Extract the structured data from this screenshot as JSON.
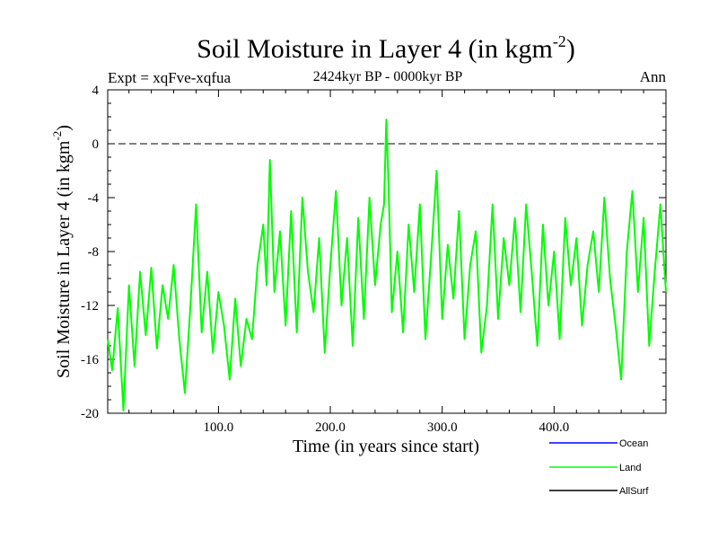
{
  "chart_data": {
    "type": "line",
    "title": "Soil Moisture in Layer 4 (in kgm",
    "title_sup": "-2",
    "title_close": ")",
    "subtitle": "2424kyr BP - 0000kyr BP",
    "expt_label": "Expt = xqFve-xqfua",
    "season_label": "Ann",
    "xlabel": "Time (in years since start)",
    "ylabel": "Soil Moisture in Layer 4 (in kgm",
    "ylabel_sup": "-2",
    "ylabel_close": ")",
    "xlim": [
      1,
      500
    ],
    "ylim": [
      -20,
      4
    ],
    "xticks": [
      100,
      200,
      300,
      400
    ],
    "xtick_labels": [
      "100.0",
      "200.0",
      "300.0",
      "400.0"
    ],
    "yticks": [
      4,
      0,
      -4,
      -8,
      -12,
      -16,
      -20
    ],
    "ytick_labels": [
      "4",
      "0",
      "-4",
      "-8",
      "-12",
      "-16",
      "-20"
    ],
    "reference_line": {
      "y": 0,
      "style": "dashed"
    },
    "legend": [
      {
        "name": "Ocean",
        "color": "#0000ff"
      },
      {
        "name": "Land",
        "color": "#00ff00"
      },
      {
        "name": "AllSurf",
        "color": "#000000"
      }
    ],
    "series": [
      {
        "name": "Land",
        "color": "#00ff00",
        "x": [
          1,
          5,
          10,
          15,
          20,
          25,
          30,
          35,
          40,
          45,
          50,
          55,
          60,
          65,
          70,
          75,
          80,
          85,
          90,
          95,
          100,
          105,
          110,
          115,
          120,
          125,
          130,
          135,
          140,
          143,
          146,
          150,
          155,
          160,
          165,
          170,
          175,
          180,
          185,
          190,
          195,
          200,
          205,
          210,
          215,
          220,
          225,
          230,
          235,
          240,
          245,
          248,
          250,
          252,
          255,
          260,
          265,
          270,
          275,
          280,
          285,
          290,
          295,
          300,
          305,
          310,
          315,
          320,
          325,
          330,
          335,
          340,
          345,
          350,
          355,
          360,
          365,
          370,
          375,
          380,
          385,
          390,
          395,
          400,
          405,
          410,
          415,
          420,
          425,
          430,
          435,
          440,
          445,
          450,
          455,
          460,
          465,
          470,
          475,
          480,
          485,
          490,
          495,
          500
        ],
        "y": [
          -14.5,
          -16.8,
          -12.2,
          -19.8,
          -10.5,
          -16.5,
          -9.5,
          -14.2,
          -9.2,
          -15.2,
          -10.5,
          -13.0,
          -9.0,
          -14.5,
          -18.5,
          -12.0,
          -4.5,
          -14.0,
          -9.5,
          -15.5,
          -11.0,
          -13.5,
          -17.5,
          -11.5,
          -16.5,
          -13.0,
          -14.5,
          -9.0,
          -6.0,
          -10.5,
          -1.2,
          -11.0,
          -6.5,
          -13.5,
          -5.0,
          -14.0,
          -4.0,
          -9.5,
          -12.5,
          -7.0,
          -15.5,
          -9.0,
          -3.5,
          -12.0,
          -7.0,
          -15.0,
          -5.5,
          -13.0,
          -4.0,
          -10.5,
          -6.0,
          -4.5,
          1.8,
          -3.0,
          -12.5,
          -8.0,
          -14.0,
          -6.0,
          -11.0,
          -4.5,
          -14.5,
          -8.5,
          -2.0,
          -13.0,
          -7.5,
          -11.5,
          -5.0,
          -14.5,
          -9.0,
          -6.5,
          -15.5,
          -12.0,
          -4.5,
          -13.0,
          -7.0,
          -10.5,
          -5.5,
          -12.5,
          -4.5,
          -9.5,
          -15.0,
          -6.0,
          -12.0,
          -8.0,
          -14.5,
          -5.5,
          -10.5,
          -7.0,
          -13.5,
          -9.0,
          -6.5,
          -11.0,
          -4.0,
          -10.0,
          -13.5,
          -17.5,
          -8.0,
          -3.5,
          -11.0,
          -5.5,
          -15.0,
          -9.5,
          -4.5,
          -11.0
        ]
      }
    ]
  }
}
